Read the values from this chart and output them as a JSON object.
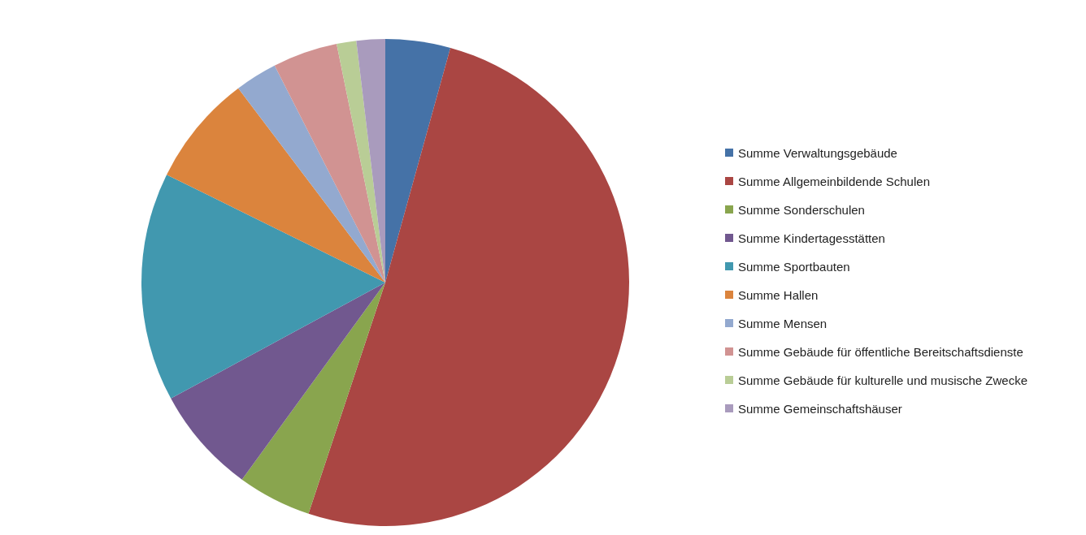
{
  "chart_data": {
    "type": "pie",
    "categories": [
      "Summe Verwaltungsgebäude",
      "Summe Allgemeinbildende Schulen",
      "Summe Sonderschulen",
      "Summe Kindertagesstätten",
      "Summe Sportbauten",
      "Summe Hallen",
      "Summe Mensen",
      "Summe Gebäude für öffentliche Bereitschaftsdienste",
      "Summe Gebäude für kulturelle und musische Zwecke",
      "Summe Gemeinschaftshäuser"
    ],
    "values": [
      4.3,
      50.8,
      4.9,
      7.1,
      15.2,
      7.4,
      2.8,
      4.3,
      1.3,
      1.9
    ],
    "colors": [
      "#4572a7",
      "#aa4643",
      "#89a54e",
      "#71588f",
      "#4198af",
      "#db843d",
      "#93a9cf",
      "#d19392",
      "#b9cd96",
      "#a99bbd"
    ],
    "legend": "right"
  }
}
